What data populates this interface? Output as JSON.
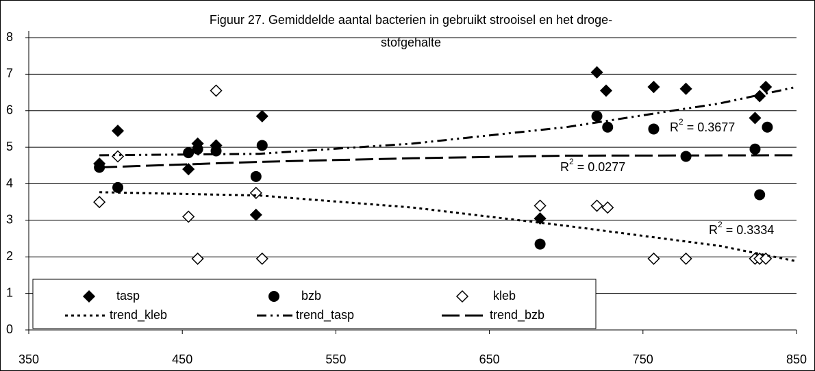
{
  "chart_data": {
    "type": "scatter",
    "title_lines": [
      "Figuur 27. Gemiddelde aantal bacterien in gebruikt strooisel en het droge-",
      "stofgehalte"
    ],
    "xlim": [
      350,
      850
    ],
    "xticks": [
      350,
      450,
      550,
      650,
      750,
      850
    ],
    "ylim": [
      0,
      8
    ],
    "yticks": [
      0,
      1,
      2,
      3,
      4,
      5,
      6,
      7,
      8
    ],
    "grid": true,
    "series": [
      {
        "name": "tasp",
        "marker": "filled-diamond",
        "color": "#000000",
        "x": [
          396,
          408,
          454,
          460,
          472,
          498,
          502,
          683,
          720,
          726,
          757,
          778,
          823,
          826,
          830
        ],
        "values": [
          4.55,
          5.45,
          4.4,
          5.1,
          5.05,
          3.15,
          5.85,
          3.05,
          7.05,
          6.55,
          6.65,
          6.6,
          5.8,
          6.4,
          6.65
        ]
      },
      {
        "name": "bzb",
        "marker": "filled-circle",
        "color": "#000000",
        "x": [
          396,
          408,
          454,
          460,
          472,
          498,
          502,
          683,
          720,
          727,
          757,
          778,
          823,
          826,
          831
        ],
        "values": [
          4.45,
          3.9,
          4.85,
          4.95,
          4.9,
          4.2,
          5.05,
          2.35,
          5.85,
          5.55,
          5.5,
          4.75,
          4.95,
          3.7,
          5.55
        ]
      },
      {
        "name": "kleb",
        "marker": "open-diamond",
        "color": "#000000",
        "x": [
          396,
          408,
          454,
          460,
          472,
          498,
          502,
          683,
          720,
          727,
          757,
          778,
          823,
          826,
          830
        ],
        "values": [
          3.5,
          4.75,
          3.1,
          1.95,
          6.55,
          3.75,
          1.95,
          3.4,
          3.4,
          3.35,
          1.95,
          1.95,
          1.95,
          1.95,
          1.95
        ]
      },
      {
        "name": "trend_kleb",
        "line": "dotted",
        "color": "#000000",
        "x": [
          396,
          500,
          600,
          700,
          800,
          850
        ],
        "values": [
          3.77,
          3.68,
          3.35,
          2.85,
          2.3,
          1.88
        ]
      },
      {
        "name": "trend_tasp",
        "line": "dash-dot",
        "color": "#000000",
        "x": [
          396,
          500,
          600,
          700,
          800,
          850
        ],
        "values": [
          4.78,
          4.82,
          5.1,
          5.55,
          6.2,
          6.65
        ]
      },
      {
        "name": "trend_bzb",
        "line": "long-dash",
        "color": "#000000",
        "x": [
          396,
          500,
          600,
          700,
          850
        ],
        "values": [
          4.45,
          4.6,
          4.7,
          4.77,
          4.78
        ]
      }
    ],
    "annotations": [
      {
        "base": "R",
        "sup": "2",
        "text": " = 0.3677"
      },
      {
        "base": "R",
        "sup": "2",
        "text": " = 0.0277"
      },
      {
        "base": "R",
        "sup": "2",
        "text": " = 0.3334"
      }
    ]
  }
}
